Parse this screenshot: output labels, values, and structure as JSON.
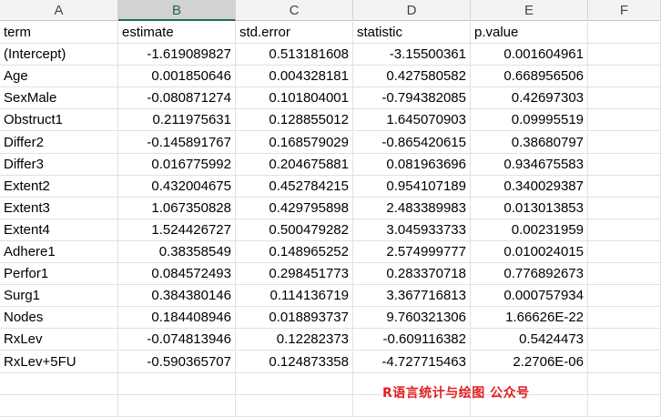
{
  "columns": [
    "A",
    "B",
    "C",
    "D",
    "E",
    "F"
  ],
  "selected_column": "B",
  "header_row": [
    "term",
    "estimate",
    "std.error",
    "statistic",
    "p.value"
  ],
  "rows": [
    [
      "(Intercept)",
      "-1.619089827",
      "0.513181608",
      "-3.15500361",
      "0.001604961"
    ],
    [
      "Age",
      "0.001850646",
      "0.004328181",
      "0.427580582",
      "0.668956506"
    ],
    [
      "SexMale",
      "-0.080871274",
      "0.101804001",
      "-0.794382085",
      "0.42697303"
    ],
    [
      "Obstruct1",
      "0.211975631",
      "0.128855012",
      "1.645070903",
      "0.09995519"
    ],
    [
      "Differ2",
      "-0.145891767",
      "0.168579029",
      "-0.865420615",
      "0.38680797"
    ],
    [
      "Differ3",
      "0.016775992",
      "0.204675881",
      "0.081963696",
      "0.934675583"
    ],
    [
      "Extent2",
      "0.432004675",
      "0.452784215",
      "0.954107189",
      "0.340029387"
    ],
    [
      "Extent3",
      "1.067350828",
      "0.429795898",
      "2.483389983",
      "0.013013853"
    ],
    [
      "Extent4",
      "1.524426727",
      "0.500479282",
      "3.045933733",
      "0.00231959"
    ],
    [
      "Adhere1",
      "0.38358549",
      "0.148965252",
      "2.574999777",
      "0.010024015"
    ],
    [
      "Perfor1",
      "0.084572493",
      "0.298451773",
      "0.283370718",
      "0.776892673"
    ],
    [
      "Surg1",
      "0.384380146",
      "0.114136719",
      "3.367716813",
      "0.000757934"
    ],
    [
      "Nodes",
      "0.184408946",
      "0.018893737",
      "9.760321306",
      "1.66626E-22"
    ],
    [
      "RxLev",
      "-0.074813946",
      "0.12282373",
      "-0.609116382",
      "0.5424473"
    ],
    [
      "RxLev+5FU",
      "-0.590365707",
      "0.124873358",
      "-4.727715463",
      "2.2706E-06"
    ]
  ],
  "watermark": "R语言统计与绘图 公众号"
}
